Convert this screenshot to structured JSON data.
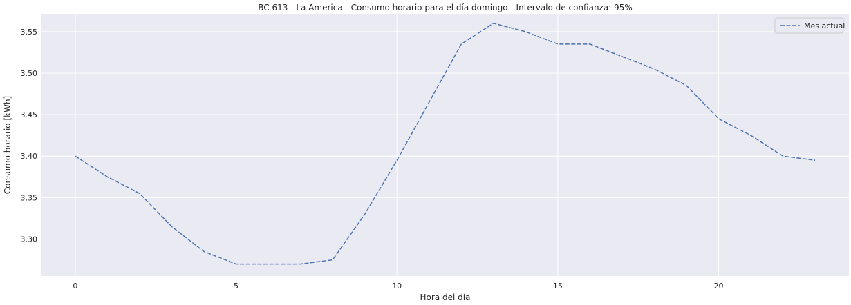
{
  "chart_data": {
    "type": "line",
    "title": "BC 613 - La America - Consumo horario para el día domingo - Intervalo de confianza: 95%",
    "xlabel": "Hora del día",
    "ylabel": "Consumo horario [kWh]",
    "xlim": [
      -1.05,
      24.05
    ],
    "ylim": [
      3.2555,
      3.5715
    ],
    "xticks": [
      0,
      5,
      10,
      15,
      20
    ],
    "yticks": [
      3.3,
      3.35,
      3.4,
      3.45,
      3.5,
      3.55
    ],
    "xtick_labels": [
      "0",
      "5",
      "10",
      "15",
      "20"
    ],
    "ytick_labels": [
      "3.30",
      "3.35",
      "3.40",
      "3.45",
      "3.50",
      "3.55"
    ],
    "grid": true,
    "legend_position": "top-right",
    "series": [
      {
        "name": "Mes actual",
        "style": "dashed",
        "color": "#4c72b0",
        "x": [
          0,
          1,
          2,
          3,
          4,
          5,
          6,
          7,
          8,
          9,
          10,
          11,
          12,
          13,
          14,
          15,
          16,
          17,
          18,
          19,
          20,
          21,
          22,
          23
        ],
        "y": [
          3.4,
          3.375,
          3.355,
          3.315,
          3.285,
          3.27,
          3.27,
          3.27,
          3.275,
          3.33,
          3.395,
          3.465,
          3.535,
          3.56,
          3.55,
          3.535,
          3.535,
          3.52,
          3.505,
          3.485,
          3.445,
          3.425,
          3.4,
          3.395
        ]
      }
    ]
  },
  "style": {
    "plot_background": "#eaeaf2",
    "grid_color": "#ffffff",
    "text_color": "#262626"
  }
}
